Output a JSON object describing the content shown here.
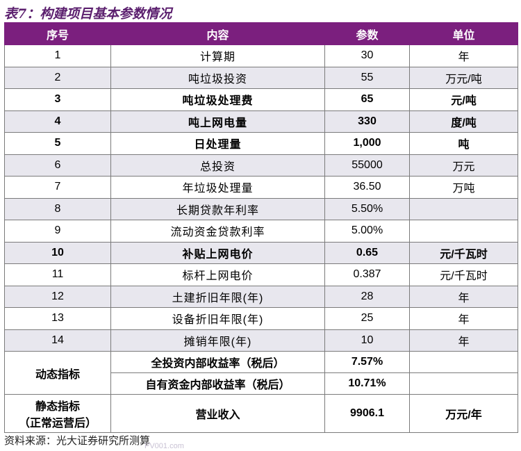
{
  "title": "表7：构建项目基本参数情况",
  "table": {
    "header": [
      "序号",
      "内容",
      "参数",
      "单位"
    ],
    "rows": [
      {
        "cells": [
          "1",
          "计算期",
          "30",
          "年"
        ],
        "bold": false
      },
      {
        "cells": [
          "2",
          "吨垃圾投资",
          "55",
          "万元/吨"
        ],
        "bold": false
      },
      {
        "cells": [
          "3",
          "吨垃圾处理费",
          "65",
          "元/吨"
        ],
        "bold": true
      },
      {
        "cells": [
          "4",
          "吨上网电量",
          "330",
          "度/吨"
        ],
        "bold": true
      },
      {
        "cells": [
          "5",
          "日处理量",
          "1,000",
          "吨"
        ],
        "bold": true
      },
      {
        "cells": [
          "6",
          "总投资",
          "55000",
          "万元"
        ],
        "bold": false
      },
      {
        "cells": [
          "7",
          "年垃圾处理量",
          "36.50",
          "万吨"
        ],
        "bold": false
      },
      {
        "cells": [
          "8",
          "长期贷款年利率",
          "5.50%"
        ],
        "bold": false
      },
      {
        "cells": [
          "9",
          "流动资金贷款利率",
          "5.00%"
        ],
        "bold": false
      },
      {
        "cells": [
          "10",
          "补贴上网电价",
          "0.65",
          "元/千瓦时"
        ],
        "bold": true
      },
      {
        "cells": [
          "11",
          "标杆上网电价",
          "0.387",
          "元/千瓦时"
        ],
        "bold": false
      },
      {
        "cells": [
          "12",
          "土建折旧年限(年)",
          "28",
          "年"
        ],
        "bold": false
      },
      {
        "cells": [
          "13",
          "设备折旧年限(年)",
          "25",
          "年"
        ],
        "bold": false
      },
      {
        "cells": [
          "14",
          "摊销年限(年)",
          "10",
          "年"
        ],
        "bold": false
      }
    ],
    "dynamic": {
      "label": "动态指标",
      "items": [
        [
          "全投资内部收益率（税后）",
          "7.57%"
        ],
        [
          "自有资金内部收益率（税后）",
          "10.71%"
        ]
      ]
    },
    "static": {
      "label": "静态指标",
      "sublabel": "（正常运营后）",
      "item": [
        "营业收入",
        "9906.1",
        "万元/年"
      ]
    }
  },
  "source": "资料来源：光大证券研究所测算",
  "watermark": "PV001.com"
}
